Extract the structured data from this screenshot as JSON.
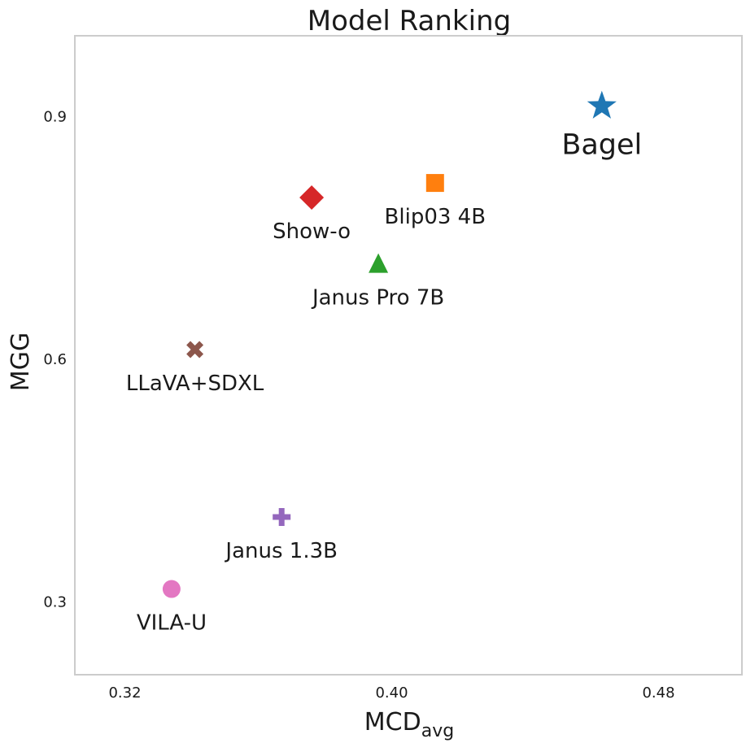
{
  "chart_data": {
    "type": "scatter",
    "title": "Model Ranking",
    "xlabel": "MCD",
    "xlabel_subscript": "avg",
    "ylabel": "MGG",
    "xlim": [
      0.305,
      0.505
    ],
    "ylim": [
      0.21,
      1.0
    ],
    "xticks": [
      0.32,
      0.4,
      0.48
    ],
    "xtick_labels": [
      "0.32",
      "0.40",
      "0.48"
    ],
    "yticks": [
      0.3,
      0.6,
      0.9
    ],
    "ytick_labels": [
      "0.3",
      "0.6",
      "0.9"
    ],
    "grid": false,
    "points": [
      {
        "label": "Bagel",
        "x": 0.463,
        "y": 0.913,
        "marker": "star",
        "color": "#1f77b4"
      },
      {
        "label": "Blip03 4B",
        "x": 0.413,
        "y": 0.818,
        "marker": "square",
        "color": "#ff7f0e"
      },
      {
        "label": "Show-o",
        "x": 0.376,
        "y": 0.8,
        "marker": "diamond",
        "color": "#d62728"
      },
      {
        "label": "Janus Pro 7B",
        "x": 0.396,
        "y": 0.718,
        "marker": "triangle",
        "color": "#2ca02c"
      },
      {
        "label": "LLaVA+SDXL",
        "x": 0.341,
        "y": 0.612,
        "marker": "x",
        "color": "#8c564b"
      },
      {
        "label": "Janus 1.3B",
        "x": 0.367,
        "y": 0.405,
        "marker": "plus",
        "color": "#9467bd"
      },
      {
        "label": "VILA-U",
        "x": 0.334,
        "y": 0.316,
        "marker": "circle",
        "color": "#e377c2"
      }
    ]
  }
}
